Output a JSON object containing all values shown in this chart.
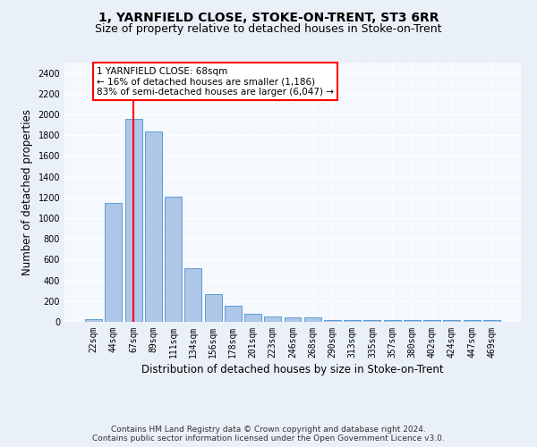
{
  "title": "1, YARNFIELD CLOSE, STOKE-ON-TRENT, ST3 6RR",
  "subtitle": "Size of property relative to detached houses in Stoke-on-Trent",
  "xlabel": "Distribution of detached houses by size in Stoke-on-Trent",
  "ylabel": "Number of detached properties",
  "categories": [
    "22sqm",
    "44sqm",
    "67sqm",
    "89sqm",
    "111sqm",
    "134sqm",
    "156sqm",
    "178sqm",
    "201sqm",
    "223sqm",
    "246sqm",
    "268sqm",
    "290sqm",
    "313sqm",
    "335sqm",
    "357sqm",
    "380sqm",
    "402sqm",
    "424sqm",
    "447sqm",
    "469sqm"
  ],
  "values": [
    30,
    1150,
    1960,
    1840,
    1210,
    515,
    265,
    155,
    80,
    50,
    45,
    40,
    20,
    20,
    15,
    20,
    20,
    20,
    20,
    20,
    20
  ],
  "bar_color": "#aec6e8",
  "bar_edgecolor": "#5a9fd4",
  "property_line_x": 2.0,
  "annotation_text": "1 YARNFIELD CLOSE: 68sqm\n← 16% of detached houses are smaller (1,186)\n83% of semi-detached houses are larger (6,047) →",
  "annotation_box_color": "white",
  "annotation_box_edgecolor": "red",
  "line_color": "red",
  "ylim": [
    0,
    2500
  ],
  "yticks": [
    0,
    200,
    400,
    600,
    800,
    1000,
    1200,
    1400,
    1600,
    1800,
    2000,
    2200,
    2400
  ],
  "footer1": "Contains HM Land Registry data © Crown copyright and database right 2024.",
  "footer2": "Contains public sector information licensed under the Open Government Licence v3.0.",
  "bg_color": "#eaf0f8",
  "plot_bg_color": "#f5f8fd",
  "title_fontsize": 10,
  "subtitle_fontsize": 9,
  "xlabel_fontsize": 8.5,
  "ylabel_fontsize": 8.5,
  "tick_fontsize": 7,
  "footer_fontsize": 6.5,
  "annotation_fontsize": 7.5
}
